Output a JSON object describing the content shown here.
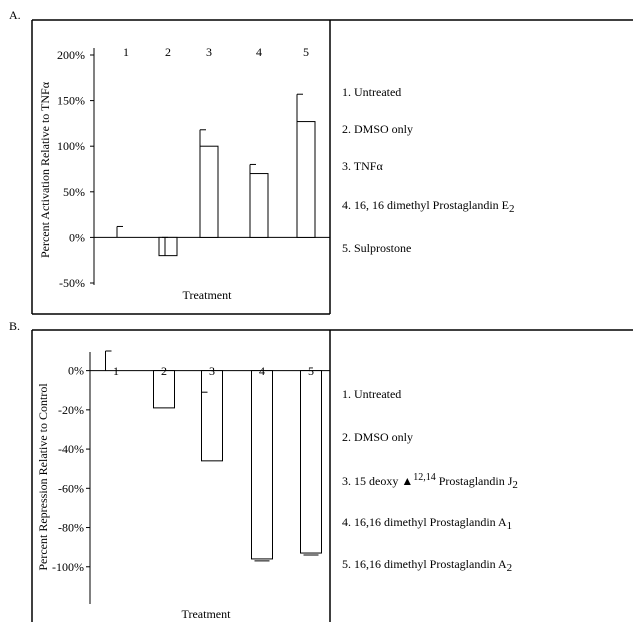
{
  "panels": [
    {
      "label": "A.",
      "legend": [
        {
          "text": "1.  Untreated"
        },
        {
          "text": "2.  DMSO only"
        },
        {
          "text": "3. TNFα"
        },
        {
          "text": "4. 16, 16 dimethyl Prostaglandin E",
          "sub": "2"
        },
        {
          "text": "5.  Sulprostone"
        }
      ]
    },
    {
      "label": "B.",
      "legend": [
        {
          "text": "1.  Untreated"
        },
        {
          "text": "2.  DMSO only"
        },
        {
          "text": "3.  15 deoxy ",
          "symbol": "▲",
          "sup": "12,14",
          "text2": " Prostaglandin J",
          "sub": "2"
        },
        {
          "text": "4.  16,16 dimethyl Prostaglandin A",
          "sub": "1"
        },
        {
          "text": "5. 16,16 dimethyl Prostaglandin A",
          "sub": "2"
        }
      ]
    }
  ],
  "chart_data": [
    {
      "type": "bar",
      "categories": [
        "1",
        "2",
        "3",
        "4",
        "5"
      ],
      "values": [
        0,
        -20,
        100,
        70,
        127
      ],
      "error_upper": [
        12,
        0,
        18,
        10,
        30
      ],
      "error_lower": [
        0,
        17,
        0,
        0,
        0
      ],
      "xlabel": "Treatment",
      "ylabel": "Percent Activation Relative to TNFα",
      "ylim": [
        -50,
        200
      ],
      "yticks": [
        200,
        150,
        100,
        50,
        0,
        -50
      ],
      "ytick_labels": [
        "200%",
        "150%",
        "100%",
        "50%",
        "0%",
        "-50%"
      ],
      "grid": false,
      "category_labels_position": "top"
    },
    {
      "type": "bar",
      "categories": [
        "1",
        "2",
        "3",
        "4",
        "5"
      ],
      "values": [
        0,
        -19,
        -46,
        -96,
        -93
      ],
      "error_upper": [
        10,
        0,
        35,
        0,
        0
      ],
      "error_lower": [
        0,
        0,
        0,
        1,
        1
      ],
      "xlabel": "Treatment",
      "ylabel": "Percent Repression Relative to Control",
      "ylim": [
        -120,
        10
      ],
      "yticks": [
        0,
        -20,
        -40,
        -60,
        -80,
        -100
      ],
      "ytick_labels": [
        "0%",
        "-20%",
        "-40%",
        "-60%",
        "-80%",
        "-100%"
      ],
      "grid": false,
      "category_labels_position": "top"
    }
  ]
}
